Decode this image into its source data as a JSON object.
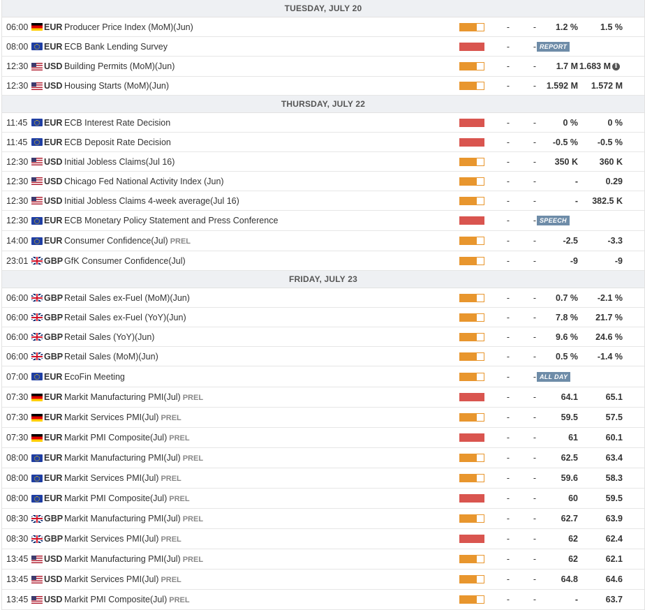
{
  "days": [
    {
      "label": "TUESDAY, JULY 20",
      "events": [
        {
          "time": "06:00",
          "flag": "de",
          "cur": "EUR",
          "name": "Producer Price Index (MoM)(Jun)",
          "impact": "med",
          "actual": "-",
          "deviation": "-",
          "consensus": "1.2 %",
          "previous": "1.5 %"
        },
        {
          "time": "08:00",
          "flag": "eu",
          "cur": "EUR",
          "name": "ECB Bank Lending Survey",
          "impact": "high",
          "actual": "-",
          "deviation": "-",
          "badge": "REPORT"
        },
        {
          "time": "12:30",
          "flag": "us",
          "cur": "USD",
          "name": "Building Permits (MoM)(Jun)",
          "impact": "med",
          "actual": "-",
          "deviation": "-",
          "consensus": "1.7 M",
          "previous": "1.683 M",
          "info": "i"
        },
        {
          "time": "12:30",
          "flag": "us",
          "cur": "USD",
          "name": "Housing Starts (MoM)(Jun)",
          "impact": "med",
          "actual": "-",
          "deviation": "-",
          "consensus": "1.592 M",
          "previous": "1.572 M"
        }
      ]
    },
    {
      "label": "THURSDAY, JULY 22",
      "events": [
        {
          "time": "11:45",
          "flag": "eu",
          "cur": "EUR",
          "name": "ECB Interest Rate Decision",
          "impact": "high",
          "actual": "-",
          "deviation": "-",
          "consensus": "0 %",
          "previous": "0 %"
        },
        {
          "time": "11:45",
          "flag": "eu",
          "cur": "EUR",
          "name": "ECB Deposit Rate Decision",
          "impact": "high",
          "actual": "-",
          "deviation": "-",
          "consensus": "-0.5 %",
          "previous": "-0.5 %"
        },
        {
          "time": "12:30",
          "flag": "us",
          "cur": "USD",
          "name": "Initial Jobless Claims(Jul 16)",
          "impact": "med",
          "actual": "-",
          "deviation": "-",
          "consensus": "350 K",
          "previous": "360 K"
        },
        {
          "time": "12:30",
          "flag": "us",
          "cur": "USD",
          "name": "Chicago Fed National Activity Index (Jun)",
          "impact": "med",
          "actual": "-",
          "deviation": "-",
          "consensus": "-",
          "previous": "0.29"
        },
        {
          "time": "12:30",
          "flag": "us",
          "cur": "USD",
          "name": "Initial Jobless Claims 4-week average(Jul 16)",
          "impact": "med",
          "actual": "-",
          "deviation": "-",
          "consensus": "-",
          "previous": "382.5 K"
        },
        {
          "time": "12:30",
          "flag": "eu",
          "cur": "EUR",
          "name": "ECB Monetary Policy Statement and Press Conference",
          "impact": "high",
          "actual": "-",
          "deviation": "-",
          "badge": "SPEECH"
        },
        {
          "time": "14:00",
          "flag": "eu",
          "cur": "EUR",
          "name": "Consumer Confidence(Jul)",
          "prel": "PREL",
          "impact": "med",
          "actual": "-",
          "deviation": "-",
          "consensus": "-2.5",
          "previous": "-3.3"
        },
        {
          "time": "23:01",
          "flag": "gb",
          "cur": "GBP",
          "name": "GfK Consumer Confidence(Jul)",
          "impact": "med",
          "actual": "-",
          "deviation": "-",
          "consensus": "-9",
          "previous": "-9"
        }
      ]
    },
    {
      "label": "FRIDAY, JULY 23",
      "events": [
        {
          "time": "06:00",
          "flag": "gb",
          "cur": "GBP",
          "name": "Retail Sales ex-Fuel (MoM)(Jun)",
          "impact": "med",
          "actual": "-",
          "deviation": "-",
          "consensus": "0.7 %",
          "previous": "-2.1 %"
        },
        {
          "time": "06:00",
          "flag": "gb",
          "cur": "GBP",
          "name": "Retail Sales ex-Fuel (YoY)(Jun)",
          "impact": "med",
          "actual": "-",
          "deviation": "-",
          "consensus": "7.8 %",
          "previous": "21.7 %"
        },
        {
          "time": "06:00",
          "flag": "gb",
          "cur": "GBP",
          "name": "Retail Sales (YoY)(Jun)",
          "impact": "med",
          "actual": "-",
          "deviation": "-",
          "consensus": "9.6 %",
          "previous": "24.6 %"
        },
        {
          "time": "06:00",
          "flag": "gb",
          "cur": "GBP",
          "name": "Retail Sales (MoM)(Jun)",
          "impact": "med",
          "actual": "-",
          "deviation": "-",
          "consensus": "0.5 %",
          "previous": "-1.4 %"
        },
        {
          "time": "07:00",
          "flag": "eu",
          "cur": "EUR",
          "name": "EcoFin Meeting",
          "impact": "med",
          "actual": "-",
          "deviation": "-",
          "badge": "ALL DAY"
        },
        {
          "time": "07:30",
          "flag": "de",
          "cur": "EUR",
          "name": "Markit Manufacturing PMI(Jul)",
          "prel": "PREL",
          "impact": "high",
          "actual": "-",
          "deviation": "-",
          "consensus": "64.1",
          "previous": "65.1"
        },
        {
          "time": "07:30",
          "flag": "de",
          "cur": "EUR",
          "name": "Markit Services PMI(Jul)",
          "prel": "PREL",
          "impact": "med",
          "actual": "-",
          "deviation": "-",
          "consensus": "59.5",
          "previous": "57.5"
        },
        {
          "time": "07:30",
          "flag": "de",
          "cur": "EUR",
          "name": "Markit PMI Composite(Jul)",
          "prel": "PREL",
          "impact": "high",
          "actual": "-",
          "deviation": "-",
          "consensus": "61",
          "previous": "60.1"
        },
        {
          "time": "08:00",
          "flag": "eu",
          "cur": "EUR",
          "name": "Markit Manufacturing PMI(Jul)",
          "prel": "PREL",
          "impact": "med",
          "actual": "-",
          "deviation": "-",
          "consensus": "62.5",
          "previous": "63.4"
        },
        {
          "time": "08:00",
          "flag": "eu",
          "cur": "EUR",
          "name": "Markit Services PMI(Jul)",
          "prel": "PREL",
          "impact": "med",
          "actual": "-",
          "deviation": "-",
          "consensus": "59.6",
          "previous": "58.3"
        },
        {
          "time": "08:00",
          "flag": "eu",
          "cur": "EUR",
          "name": "Markit PMI Composite(Jul)",
          "prel": "PREL",
          "impact": "high",
          "actual": "-",
          "deviation": "-",
          "consensus": "60",
          "previous": "59.5"
        },
        {
          "time": "08:30",
          "flag": "gb",
          "cur": "GBP",
          "name": "Markit Manufacturing PMI(Jul)",
          "prel": "PREL",
          "impact": "med",
          "actual": "-",
          "deviation": "-",
          "consensus": "62.7",
          "previous": "63.9"
        },
        {
          "time": "08:30",
          "flag": "gb",
          "cur": "GBP",
          "name": "Markit Services PMI(Jul)",
          "prel": "PREL",
          "impact": "high",
          "actual": "-",
          "deviation": "-",
          "consensus": "62",
          "previous": "62.4"
        },
        {
          "time": "13:45",
          "flag": "us",
          "cur": "USD",
          "name": "Markit Manufacturing PMI(Jul)",
          "prel": "PREL",
          "impact": "med",
          "actual": "-",
          "deviation": "-",
          "consensus": "62",
          "previous": "62.1"
        },
        {
          "time": "13:45",
          "flag": "us",
          "cur": "USD",
          "name": "Markit Services PMI(Jul)",
          "prel": "PREL",
          "impact": "med",
          "actual": "-",
          "deviation": "-",
          "consensus": "64.8",
          "previous": "64.6"
        },
        {
          "time": "13:45",
          "flag": "us",
          "cur": "USD",
          "name": "Markit PMI Composite(Jul)",
          "prel": "PREL",
          "impact": "med",
          "actual": "-",
          "deviation": "-",
          "consensus": "-",
          "previous": "63.7"
        }
      ]
    }
  ]
}
